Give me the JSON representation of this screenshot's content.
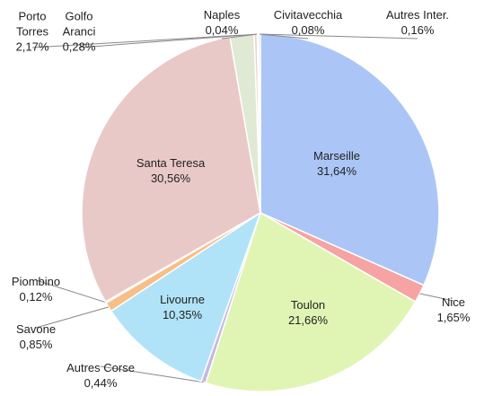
{
  "chart_data": {
    "type": "pie",
    "categories": [
      "Marseille",
      "Nice",
      "Toulon",
      "Autres Corse",
      "Livourne",
      "Savone",
      "Piombino",
      "Santa Teresa",
      "Porto Torres",
      "Golfo Aranci",
      "Naples",
      "Civitavecchia",
      "Autres Inter."
    ],
    "values": [
      31.64,
      1.65,
      21.66,
      0.44,
      10.35,
      0.85,
      0.12,
      30.56,
      2.17,
      0.28,
      0.04,
      0.08,
      0.16
    ],
    "value_labels": [
      "31,64%",
      "1,65%",
      "21,66%",
      "0,44%",
      "10,35%",
      "0,85%",
      "0,12%",
      "30,56%",
      "2,17%",
      "0,28%",
      "0,04%",
      "0,08%",
      "0,16%"
    ],
    "colors": [
      "#abc6f6",
      "#f5a3a3",
      "#e0f5b3",
      "#c6b6e6",
      "#b0e3f8",
      "#f8be86",
      "#c9c9c9",
      "#e9c9c8",
      "#dfe9d3",
      "#f0d2d2",
      "#bdbdbd",
      "#bdbdbd",
      "#bdbdbd"
    ]
  }
}
